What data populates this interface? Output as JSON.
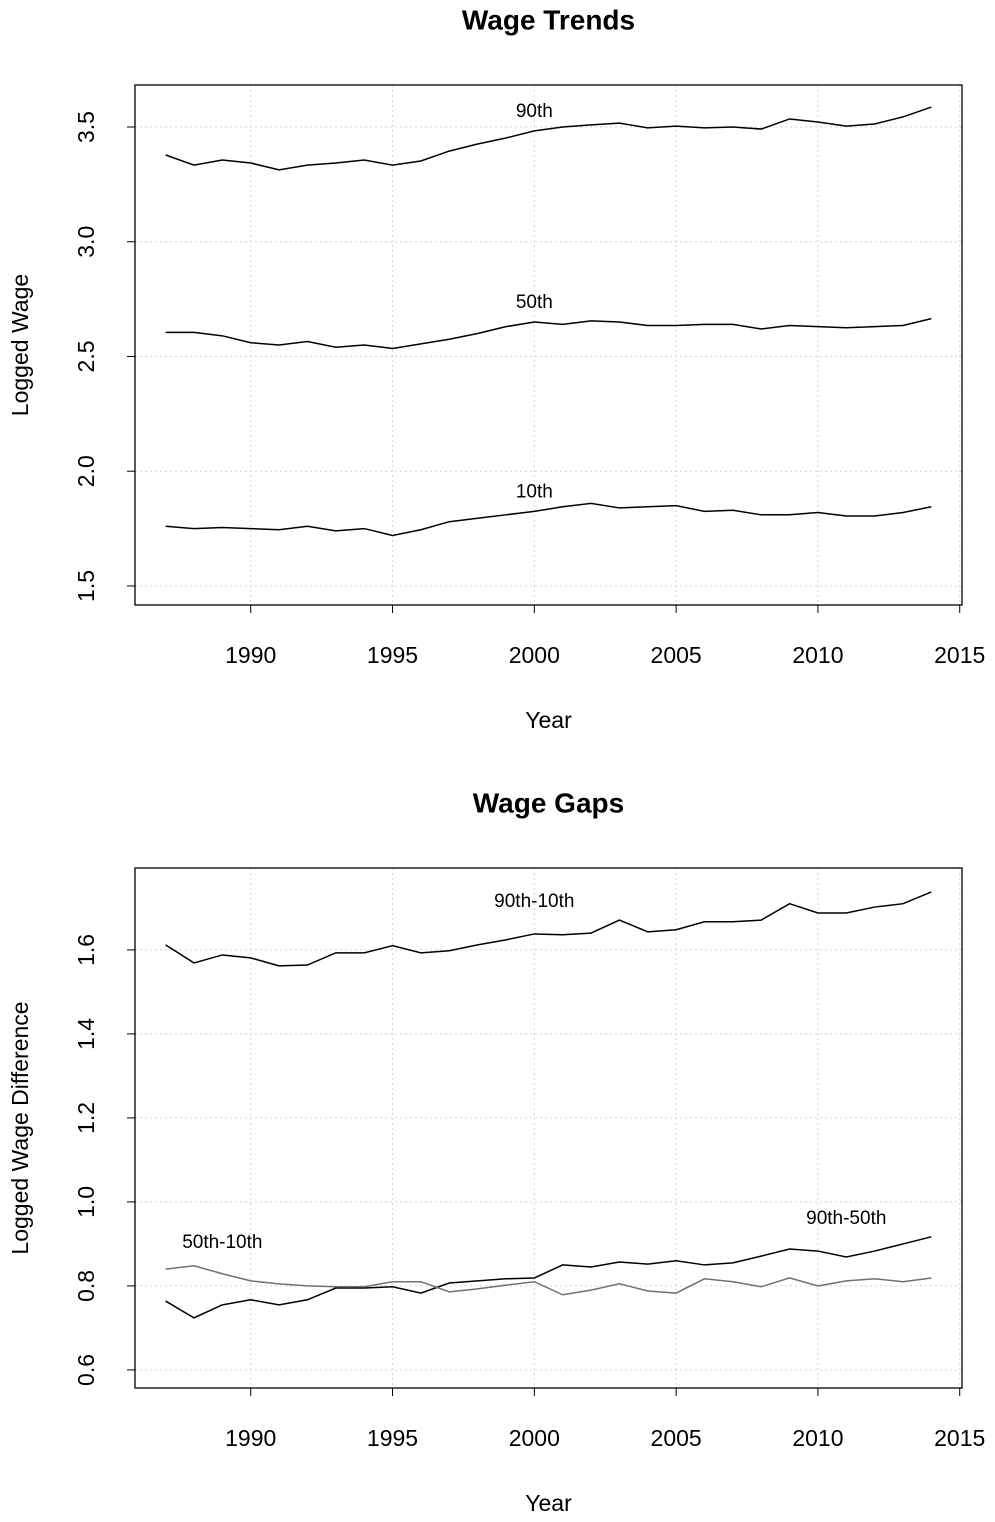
{
  "chart_data": [
    {
      "type": "line",
      "title": "Wage Trends",
      "x_label": "Year",
      "y_label": "Logged Wage",
      "x": [
        1987,
        1988,
        1989,
        1990,
        1991,
        1992,
        1993,
        1994,
        1995,
        1996,
        1997,
        1998,
        1999,
        2000,
        2001,
        2002,
        2003,
        2004,
        2005,
        2006,
        2007,
        2008,
        2009,
        2010,
        2011,
        2012,
        2013,
        2014
      ],
      "series": [
        {
          "name": "90th",
          "color": "#000000",
          "values": [
            3.378,
            3.334,
            3.356,
            3.343,
            3.313,
            3.334,
            3.343,
            3.356,
            3.334,
            3.352,
            3.395,
            3.426,
            3.452,
            3.483,
            3.5,
            3.509,
            3.517,
            3.496,
            3.504,
            3.496,
            3.5,
            3.491,
            3.535,
            3.522,
            3.504,
            3.513,
            3.544,
            3.587
          ]
        },
        {
          "name": "50th",
          "color": "#000000",
          "values": [
            2.605,
            2.605,
            2.59,
            2.56,
            2.55,
            2.565,
            2.54,
            2.55,
            2.535,
            2.555,
            2.575,
            2.6,
            2.63,
            2.65,
            2.64,
            2.655,
            2.65,
            2.635,
            2.635,
            2.64,
            2.64,
            2.62,
            2.635,
            2.63,
            2.625,
            2.63,
            2.635,
            2.665
          ]
        },
        {
          "name": "10th",
          "color": "#000000",
          "values": [
            1.76,
            1.75,
            1.755,
            1.75,
            1.745,
            1.76,
            1.74,
            1.75,
            1.72,
            1.745,
            1.78,
            1.795,
            1.81,
            1.825,
            1.845,
            1.86,
            1.84,
            1.845,
            1.85,
            1.825,
            1.83,
            1.81,
            1.81,
            1.82,
            1.805,
            1.805,
            1.82,
            1.845
          ]
        }
      ],
      "xlim": [
        1985.92,
        2015.08
      ],
      "xticks": [
        1990,
        1995,
        2000,
        2005,
        2010,
        2015
      ],
      "ylim": [
        1.417,
        3.683
      ],
      "yticks": [
        1.5,
        {
          "value": 2,
          "label": "2.0"
        },
        2.5,
        {
          "value": 3,
          "label": "3.0"
        },
        3.5
      ],
      "grid": true
    },
    {
      "type": "line",
      "title": "Wage Gaps",
      "x_label": "Year",
      "y_label": "Logged Wage Difference",
      "x": [
        1987,
        1988,
        1989,
        1990,
        1991,
        1992,
        1993,
        1994,
        1995,
        1996,
        1997,
        1998,
        1999,
        2000,
        2001,
        2002,
        2003,
        2004,
        2005,
        2006,
        2007,
        2008,
        2009,
        2010,
        2011,
        2012,
        2013,
        2014
      ],
      "series": [
        {
          "name": "90th-10th",
          "color": "#000000",
          "values": [
            1.612,
            1.569,
            1.588,
            1.581,
            1.562,
            1.564,
            1.593,
            1.593,
            1.61,
            1.593,
            1.598,
            1.612,
            1.624,
            1.638,
            1.636,
            1.64,
            1.671,
            1.643,
            1.648,
            1.667,
            1.667,
            1.671,
            1.71,
            1.688,
            1.688,
            1.702,
            1.71,
            1.738
          ]
        },
        {
          "name": "90th-50th",
          "color": "#000000",
          "values": [
            0.764,
            0.724,
            0.755,
            0.767,
            0.755,
            0.767,
            0.795,
            0.795,
            0.798,
            0.783,
            0.807,
            0.812,
            0.817,
            0.819,
            0.85,
            0.845,
            0.857,
            0.852,
            0.86,
            0.85,
            0.855,
            0.871,
            0.888,
            0.883,
            0.869,
            0.883,
            0.9,
            0.917
          ]
        },
        {
          "name": "50th-10th",
          "color": "#707070",
          "values": [
            0.84,
            0.848,
            0.829,
            0.812,
            0.805,
            0.8,
            0.798,
            0.798,
            0.81,
            0.81,
            0.786,
            0.793,
            0.802,
            0.81,
            0.779,
            0.79,
            0.805,
            0.788,
            0.783,
            0.817,
            0.81,
            0.798,
            0.819,
            0.8,
            0.812,
            0.817,
            0.81,
            0.819
          ]
        }
      ],
      "xlim": [
        1985.92,
        2015.08
      ],
      "xticks": [
        1990,
        1995,
        2000,
        2005,
        2010,
        2015
      ],
      "ylim": [
        0.557,
        1.795
      ],
      "yticks": [
        0.6,
        0.8,
        {
          "value": 1,
          "label": "1.0"
        },
        1.2,
        1.4,
        1.6
      ],
      "grid": true
    }
  ]
}
